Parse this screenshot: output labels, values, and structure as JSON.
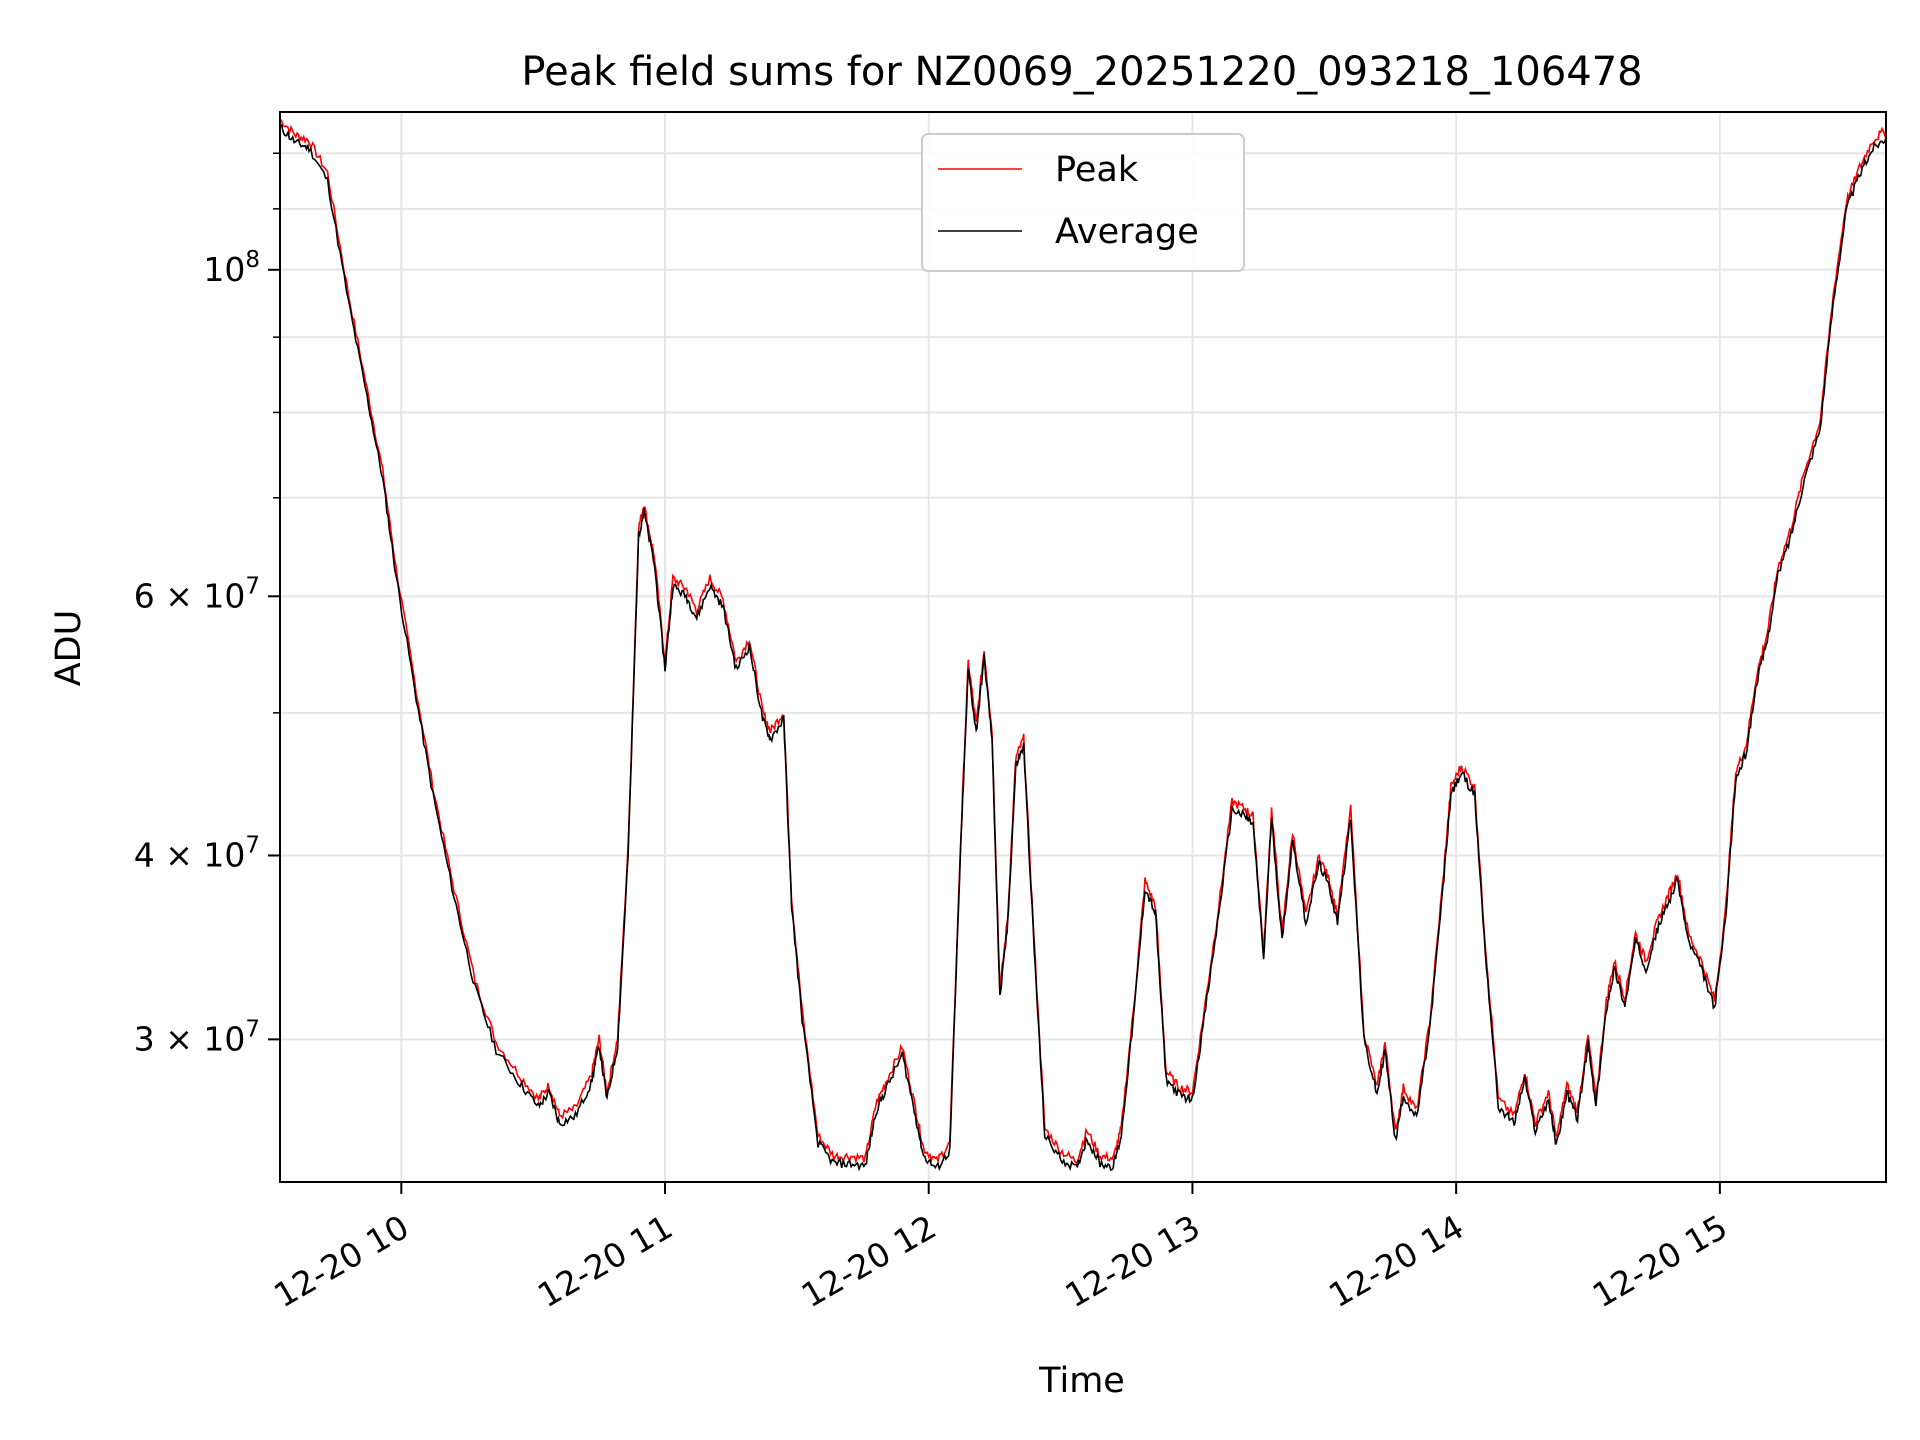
{
  "chart_data": {
    "type": "line",
    "title": "Peak field sums for NZ0069_20251220_093218_106478",
    "xlabel": "Time",
    "ylabel": "ADU",
    "y_scale": "log",
    "ylim": [
      24000000,
      128000000
    ],
    "grid": true,
    "legend_position": "top-center",
    "x_ticks": [
      "12-20 10",
      "12-20 11",
      "12-20 12",
      "12-20 13",
      "12-20 14",
      "12-20 15"
    ],
    "y_ticks": [
      {
        "value": 100000000,
        "mantissa": "",
        "base": "10",
        "exp": "8"
      },
      {
        "value": 60000000,
        "mantissa": "6 × ",
        "base": "10",
        "exp": "7"
      },
      {
        "value": 40000000,
        "mantissa": "4 × ",
        "base": "10",
        "exp": "7"
      },
      {
        "value": 30000000,
        "mantissa": "3 × ",
        "base": "10",
        "exp": "7"
      }
    ],
    "x_range_hours": [
      9.54,
      15.63
    ],
    "series": [
      {
        "name": "Peak",
        "color": "#ff0000"
      },
      {
        "name": "Average",
        "color": "#000000"
      }
    ],
    "x": [
      9.54,
      9.6,
      9.65,
      9.72,
      9.8,
      9.87,
      9.93,
      9.98,
      10.05,
      10.12,
      10.2,
      10.28,
      10.36,
      10.45,
      10.52,
      10.56,
      10.6,
      10.66,
      10.72,
      10.75,
      10.78,
      10.82,
      10.86,
      10.9,
      10.92,
      10.96,
      11.0,
      11.03,
      11.08,
      11.12,
      11.17,
      11.22,
      11.27,
      11.32,
      11.37,
      11.4,
      11.45,
      11.48,
      11.52,
      11.58,
      11.64,
      11.7,
      11.76,
      11.8,
      11.84,
      11.9,
      11.95,
      11.98,
      12.03,
      12.08,
      12.12,
      12.15,
      12.18,
      12.21,
      12.24,
      12.27,
      12.3,
      12.33,
      12.36,
      12.4,
      12.44,
      12.5,
      12.56,
      12.6,
      12.65,
      12.7,
      12.73,
      12.78,
      12.82,
      12.86,
      12.9,
      12.95,
      13.0,
      13.05,
      13.1,
      13.15,
      13.2,
      13.23,
      13.27,
      13.3,
      13.34,
      13.38,
      13.43,
      13.48,
      13.52,
      13.55,
      13.6,
      13.65,
      13.7,
      13.73,
      13.77,
      13.8,
      13.85,
      13.9,
      13.95,
      13.98,
      14.02,
      14.07,
      14.11,
      14.16,
      14.22,
      14.26,
      14.3,
      14.35,
      14.38,
      14.42,
      14.46,
      14.5,
      14.53,
      14.57,
      14.6,
      14.64,
      14.68,
      14.72,
      14.76,
      14.8,
      14.84,
      14.88,
      14.93,
      14.98,
      15.02,
      15.06,
      15.1,
      15.14,
      15.18,
      15.22,
      15.27,
      15.32,
      15.38,
      15.43,
      15.48,
      15.53,
      15.58,
      15.63
    ],
    "avg": [
      125000000,
      122000000,
      121000000,
      115000000,
      95000000,
      82000000,
      72000000,
      62000000,
      52000000,
      44000000,
      37500000,
      32500000,
      29500000,
      28000000,
      27000000,
      27600000,
      26300000,
      26600000,
      28000000,
      29700000,
      27300000,
      29700000,
      40000000,
      66000000,
      68500000,
      63000000,
      53500000,
      61000000,
      60000000,
      58000000,
      61000000,
      59000000,
      53500000,
      55500000,
      49500000,
      48000000,
      49500000,
      37000000,
      31000000,
      25500000,
      24700000,
      24700000,
      24600000,
      26800000,
      27800000,
      29300000,
      26600000,
      25000000,
      24500000,
      25200000,
      40000000,
      53500000,
      48500000,
      54500000,
      48000000,
      32000000,
      36000000,
      46000000,
      47500000,
      34500000,
      25800000,
      24900000,
      24500000,
      25700000,
      24700000,
      24600000,
      25800000,
      31500000,
      38000000,
      36500000,
      28200000,
      27500000,
      27300000,
      31500000,
      36500000,
      43000000,
      42500000,
      42000000,
      34000000,
      42500000,
      35000000,
      41000000,
      36000000,
      39500000,
      38000000,
      36000000,
      42500000,
      30000000,
      27500000,
      29500000,
      25600000,
      27500000,
      26500000,
      30500000,
      38000000,
      44000000,
      45500000,
      44000000,
      34500000,
      27000000,
      26300000,
      28200000,
      26000000,
      27300000,
      25400000,
      27600000,
      26500000,
      29800000,
      27000000,
      31500000,
      33500000,
      31600000,
      35000000,
      33500000,
      35500000,
      37000000,
      38500000,
      35000000,
      33500000,
      31500000,
      36000000,
      45000000,
      47000000,
      52500000,
      56000000,
      62000000,
      66000000,
      72000000,
      78000000,
      95000000,
      110000000,
      116000000,
      121000000,
      123000000
    ],
    "peak_ratio": 1.012
  }
}
